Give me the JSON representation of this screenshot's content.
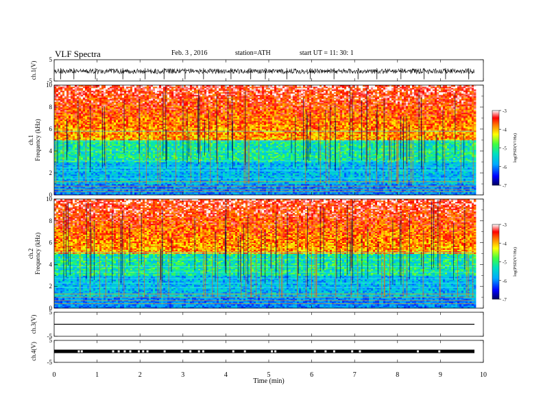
{
  "header": {
    "title": "VLF  Spectra",
    "date": "Feb. 3  , 2016",
    "station": "station=ATH",
    "start": "start  UT  =    11: 30: 1"
  },
  "chart_data": [
    {
      "type": "line",
      "panel": "ch1-waveform",
      "ylabel": "ch.1(V)",
      "ylim": [
        -5,
        5
      ],
      "yticks": [
        "5",
        "-5"
      ],
      "xlim": [
        0,
        10
      ],
      "mean": -0.4,
      "spikes": [
        0.15,
        0.46,
        0.96,
        1.6,
        2.12,
        2.56,
        3.05,
        3.48,
        4.12,
        4.58,
        4.92,
        5.42,
        5.97,
        6.52,
        7.08,
        7.52,
        8.08,
        8.62,
        9.12,
        9.66
      ]
    },
    {
      "type": "heatmap",
      "panel": "ch1-spectrogram",
      "ylabel": "ch.1\nFrequency  (kHz)",
      "yticks": [
        "0",
        "2",
        "4",
        "6",
        "8",
        "10"
      ],
      "ylim_khz": [
        0,
        10
      ],
      "xlim_min": [
        0,
        9.8
      ],
      "colorbar": {
        "label": "log(PSD(V²/Hz)",
        "ticks": [
          "-3",
          "-4",
          "-5",
          "-6",
          "-7"
        ],
        "range": [
          -7,
          -3
        ]
      }
    },
    {
      "type": "heatmap",
      "panel": "ch2-spectrogram",
      "ylabel": "ch.2\nFrequency  (kHz)",
      "yticks": [
        "0",
        "2",
        "4",
        "6",
        "8",
        "10"
      ],
      "ylim_khz": [
        0,
        10
      ],
      "xlim_min": [
        0,
        9.8
      ],
      "colorbar": {
        "label": "log(PSD(V²/Hz)",
        "ticks": [
          "-3",
          "-4",
          "-5",
          "-6",
          "-7"
        ],
        "range": [
          -7,
          -3
        ]
      }
    },
    {
      "type": "line",
      "panel": "ch3-waveform",
      "ylabel": "ch.3(V)",
      "ylim": [
        -5,
        5
      ],
      "yticks": [
        "5",
        "-5"
      ],
      "mean": 0.0
    },
    {
      "type": "line",
      "panel": "ch4-waveform",
      "ylabel": "ch.4(V)",
      "ylim": [
        -5,
        5
      ],
      "yticks": [
        "5",
        "-5"
      ],
      "mean": 0.0,
      "gaps_min": [
        0.55,
        0.62,
        1.35,
        1.48,
        1.62,
        1.75,
        1.95,
        2.05,
        2.15,
        2.55,
        2.95,
        3.15,
        3.35,
        3.45,
        4.15,
        4.42,
        5.05,
        5.13,
        6.05,
        6.3,
        6.5,
        6.92,
        7.1,
        8.45,
        8.95
      ]
    }
  ],
  "xaxis": {
    "label": "Time  (min)",
    "ticks": [
      "0",
      "1",
      "2",
      "3",
      "4",
      "5",
      "6",
      "7",
      "8",
      "9",
      "10"
    ],
    "range": [
      0,
      10
    ]
  }
}
